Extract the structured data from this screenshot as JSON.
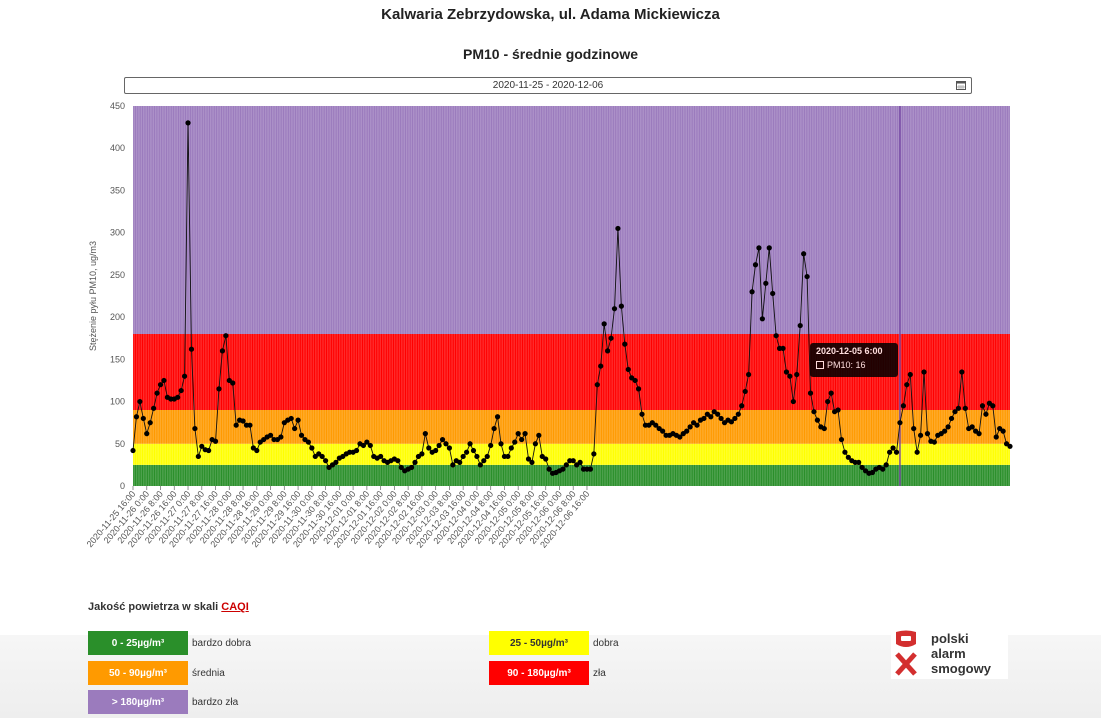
{
  "station_title": "Kalwaria Zebrzydowska, ul. Adama Mickiewicza",
  "chart_title": "PM10 - średnie godzinowe",
  "date_picker": {
    "value": "2020-11-25  -  2020-12-06"
  },
  "tooltip": {
    "title": "2020-12-05 6:00",
    "series": "PM10",
    "value": 16
  },
  "legend": {
    "heading": "Jakość powietrza w skali",
    "link": "CAQI",
    "items": [
      {
        "range": "0 - 25µg/m³",
        "label": "bardzo dobra",
        "color": "#2a8f2a"
      },
      {
        "range": "25 - 50µg/m³",
        "label": "dobra",
        "color": "#ffff00"
      },
      {
        "range": "50 - 90µg/m³",
        "label": "średnia",
        "color": "#ff9a00"
      },
      {
        "range": "90 - 180µg/m³",
        "label": "zła",
        "color": "#ff0000"
      },
      {
        "range": "> 180µg/m³",
        "label": "bardzo zła",
        "color": "#9b7bbd"
      }
    ]
  },
  "logo": {
    "line1": "polski",
    "line2": "alarm",
    "line3": "smogowy"
  },
  "chart_data": {
    "type": "line",
    "title": "PM10 - średnie godzinowe",
    "ylabel": "Stężenie pyłu PM10, ug/m3",
    "ylim": [
      0,
      450
    ],
    "yticks": [
      0,
      50,
      100,
      150,
      200,
      250,
      300,
      350,
      400,
      450
    ],
    "x_start": "2020-11-25 16:00",
    "x_step_hours": 2,
    "xticks": [
      "2020-11-25 16:00",
      "2020-11-26 0:00",
      "2020-11-26 8:00",
      "2020-11-26 16:00",
      "2020-11-27 0:00",
      "2020-11-27 8:00",
      "2020-11-27 16:00",
      "2020-11-28 0:00",
      "2020-11-28 8:00",
      "2020-11-28 16:00",
      "2020-11-29 0:00",
      "2020-11-29 8:00",
      "2020-11-29 16:00",
      "2020-11-30 0:00",
      "2020-11-30 8:00",
      "2020-11-30 16:00",
      "2020-12-01 0:00",
      "2020-12-01 8:00",
      "2020-12-01 16:00",
      "2020-12-02 0:00",
      "2020-12-02 8:00",
      "2020-12-02 16:00",
      "2020-12-03 0:00",
      "2020-12-03 8:00",
      "2020-12-03 16:00",
      "2020-12-04 0:00",
      "2020-12-04 8:00",
      "2020-12-04 16:00",
      "2020-12-05 0:00",
      "2020-12-05 8:00",
      "2020-12-05 16:00",
      "2020-12-06 0:00",
      "2020-12-06 8:00",
      "2020-12-06 16:00"
    ],
    "bands": [
      {
        "from": 0,
        "to": 25,
        "color": "#2a8f2a"
      },
      {
        "from": 25,
        "to": 50,
        "color": "#ffff00"
      },
      {
        "from": 50,
        "to": 90,
        "color": "#ff9a00"
      },
      {
        "from": 90,
        "to": 180,
        "color": "#ff0000"
      },
      {
        "from": 180,
        "to": 450,
        "color": "#9b7bbd"
      }
    ],
    "series": [
      {
        "name": "PM10",
        "color": "#000000",
        "values": [
          42,
          82,
          100,
          80,
          62,
          75,
          92,
          110,
          120,
          125,
          105,
          103,
          103,
          105,
          113,
          130,
          430,
          162,
          68,
          35,
          47,
          43,
          42,
          55,
          53,
          115,
          160,
          178,
          125,
          122,
          72,
          78,
          77,
          72,
          72,
          45,
          42,
          52,
          55,
          58,
          60,
          55,
          55,
          58,
          75,
          78,
          80,
          68,
          78,
          60,
          55,
          52,
          45,
          35,
          38,
          35,
          30,
          22,
          25,
          28,
          33,
          35,
          38,
          40,
          40,
          42,
          50,
          48,
          52,
          48,
          35,
          33,
          35,
          30,
          28,
          30,
          32,
          30,
          22,
          18,
          20,
          22,
          28,
          35,
          38,
          62,
          45,
          40,
          42,
          48,
          55,
          50,
          45,
          25,
          30,
          28,
          35,
          40,
          50,
          42,
          35,
          25,
          30,
          35,
          48,
          68,
          82,
          50,
          35,
          35,
          45,
          52,
          62,
          55,
          62,
          32,
          28,
          50,
          60,
          35,
          32,
          20,
          15,
          16,
          18,
          20,
          25,
          30,
          30,
          25,
          28,
          20,
          20,
          20,
          38,
          120,
          142,
          192,
          160,
          175,
          210,
          305,
          213,
          168,
          138,
          128,
          125,
          115,
          85,
          72,
          72,
          75,
          72,
          68,
          65,
          60,
          60,
          62,
          60,
          58,
          62,
          65,
          70,
          75,
          72,
          78,
          80,
          85,
          82,
          88,
          85,
          80,
          75,
          78,
          76,
          80,
          85,
          95,
          112,
          132,
          230,
          262,
          282,
          198,
          240,
          282,
          228,
          178,
          163,
          163,
          135,
          130,
          100,
          132,
          190,
          275,
          248,
          110,
          88,
          78,
          70,
          68,
          100,
          110,
          88,
          90,
          55,
          40,
          34,
          30,
          28,
          28,
          22,
          18,
          15,
          16,
          20,
          22,
          20,
          25,
          40,
          45,
          40,
          75,
          95,
          120,
          132,
          68,
          40,
          60,
          135,
          62,
          53,
          52,
          60,
          62,
          65,
          70,
          80,
          88,
          92,
          135,
          92,
          68,
          70,
          65,
          62,
          95,
          85,
          98,
          95,
          58,
          68,
          65,
          50,
          47
        ]
      }
    ]
  }
}
